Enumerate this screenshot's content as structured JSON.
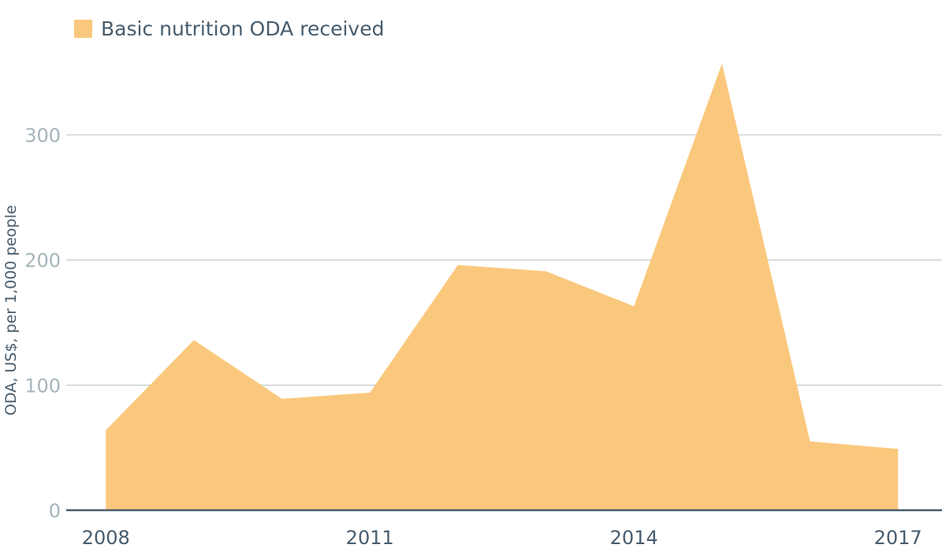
{
  "chart_data": {
    "type": "area",
    "legend": {
      "label": "Basic nutrition ODA received",
      "position": "top-left"
    },
    "ylabel": "ODA, US$, per 1,000 people",
    "xlabel": "",
    "ylim": [
      0,
      370
    ],
    "yticks": [
      0,
      100,
      200,
      300
    ],
    "xticks": [
      2008,
      2011,
      2014,
      2017
    ],
    "xlim": [
      2007.55,
      2017.5
    ],
    "grid": true,
    "color": "#fac87d",
    "series": [
      {
        "name": "Basic nutrition ODA received",
        "x": [
          2008,
          2009,
          2010,
          2011,
          2012,
          2013,
          2014,
          2015,
          2016,
          2017
        ],
        "values": [
          64,
          136,
          89,
          94,
          196,
          191,
          163,
          357,
          55,
          49
        ]
      }
    ]
  }
}
